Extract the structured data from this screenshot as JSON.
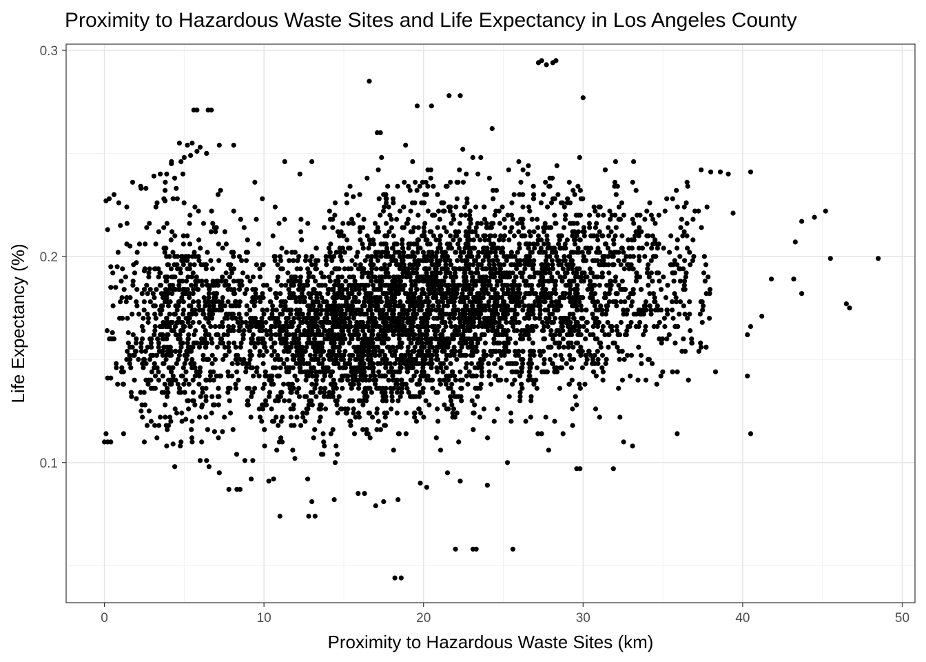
{
  "chart_data": {
    "type": "scatter",
    "title": "Proximity to Hazardous Waste Sites and Life Expectancy in Los Angeles County",
    "xlabel": "Proximity to Hazardous Waste Sites (km)",
    "ylabel": "Life Expectancy (%)",
    "xlim": [
      -2.4,
      50.8
    ],
    "ylim": [
      0.032,
      0.303
    ],
    "x_ticks": [
      0,
      10,
      20,
      30,
      40,
      50
    ],
    "x_tick_labels": [
      "0",
      "10",
      "20",
      "30",
      "40",
      "50"
    ],
    "y_ticks": [
      0.1,
      0.2,
      0.3
    ],
    "y_tick_labels": [
      "0.1",
      "0.2",
      "0.3"
    ],
    "grid": true,
    "legend": "none",
    "point_color": "#000000",
    "points": [
      [
        16.6,
        0.285
      ],
      [
        27.2,
        0.294
      ],
      [
        27.4,
        0.295
      ],
      [
        27.7,
        0.293
      ],
      [
        28.1,
        0.294
      ],
      [
        28.3,
        0.295
      ],
      [
        30.0,
        0.277
      ],
      [
        21.6,
        0.278
      ],
      [
        22.3,
        0.278
      ],
      [
        19.6,
        0.273
      ],
      [
        20.5,
        0.273
      ],
      [
        5.6,
        0.271
      ],
      [
        5.8,
        0.271
      ],
      [
        6.5,
        0.271
      ],
      [
        6.7,
        0.271
      ],
      [
        17.1,
        0.26
      ],
      [
        17.3,
        0.26
      ],
      [
        24.3,
        0.262
      ],
      [
        4.7,
        0.255
      ],
      [
        5.2,
        0.254
      ],
      [
        5.5,
        0.255
      ],
      [
        6.0,
        0.253
      ],
      [
        7.2,
        0.254
      ],
      [
        8.1,
        0.254
      ],
      [
        5.0,
        0.248
      ],
      [
        5.4,
        0.249
      ],
      [
        5.8,
        0.251
      ],
      [
        6.4,
        0.25
      ],
      [
        4.2,
        0.245
      ],
      [
        4.8,
        0.246
      ],
      [
        11.3,
        0.246
      ],
      [
        13.0,
        0.246
      ],
      [
        3.1,
        0.239
      ],
      [
        3.5,
        0.24
      ],
      [
        3.9,
        0.24
      ],
      [
        4.4,
        0.238
      ],
      [
        2.3,
        0.233
      ],
      [
        2.6,
        0.233
      ],
      [
        3.8,
        0.232
      ],
      [
        4.5,
        0.233
      ],
      [
        0.1,
        0.227
      ],
      [
        0.3,
        0.228
      ],
      [
        0.6,
        0.23
      ],
      [
        0.9,
        0.226
      ],
      [
        1.4,
        0.224
      ],
      [
        3.3,
        0.226
      ],
      [
        3.8,
        0.227
      ],
      [
        4.3,
        0.228
      ],
      [
        9.9,
        0.228
      ],
      [
        10.7,
        0.224
      ],
      [
        15.6,
        0.229
      ],
      [
        16.0,
        0.23
      ],
      [
        37.4,
        0.242
      ],
      [
        38.0,
        0.241
      ],
      [
        38.6,
        0.241
      ],
      [
        39.1,
        0.24
      ],
      [
        40.5,
        0.241
      ],
      [
        39.4,
        0.221
      ],
      [
        45.2,
        0.222
      ],
      [
        44.5,
        0.219
      ],
      [
        43.7,
        0.217
      ],
      [
        43.3,
        0.207
      ],
      [
        45.5,
        0.199
      ],
      [
        48.5,
        0.199
      ],
      [
        41.8,
        0.189
      ],
      [
        43.2,
        0.189
      ],
      [
        43.7,
        0.182
      ],
      [
        46.5,
        0.177
      ],
      [
        46.7,
        0.175
      ],
      [
        41.2,
        0.171
      ],
      [
        40.3,
        0.162
      ],
      [
        40.5,
        0.166
      ],
      [
        40.3,
        0.142
      ],
      [
        40.5,
        0.114
      ],
      [
        38.3,
        0.144
      ],
      [
        36.6,
        0.14
      ],
      [
        35.9,
        0.114
      ],
      [
        33.1,
        0.108
      ],
      [
        31.9,
        0.097
      ],
      [
        29.6,
        0.097
      ],
      [
        29.8,
        0.097
      ],
      [
        28.1,
        0.148
      ],
      [
        24.0,
        0.089
      ],
      [
        22.3,
        0.091
      ],
      [
        22.0,
        0.058
      ],
      [
        23.1,
        0.058
      ],
      [
        23.3,
        0.058
      ],
      [
        25.6,
        0.058
      ],
      [
        18.2,
        0.044
      ],
      [
        18.6,
        0.044
      ],
      [
        11.0,
        0.074
      ],
      [
        12.8,
        0.074
      ],
      [
        13.2,
        0.074
      ],
      [
        13.0,
        0.081
      ],
      [
        14.4,
        0.082
      ],
      [
        15.9,
        0.085
      ],
      [
        16.3,
        0.085
      ],
      [
        17.0,
        0.079
      ],
      [
        17.5,
        0.081
      ],
      [
        18.4,
        0.082
      ],
      [
        19.8,
        0.09
      ],
      [
        21.5,
        0.095
      ],
      [
        7.8,
        0.087
      ],
      [
        8.3,
        0.087
      ],
      [
        8.5,
        0.087
      ],
      [
        9.2,
        0.092
      ],
      [
        10.3,
        0.091
      ],
      [
        10.6,
        0.092
      ],
      [
        7.2,
        0.095
      ],
      [
        8.8,
        0.101
      ],
      [
        9.3,
        0.101
      ],
      [
        6.0,
        0.101
      ],
      [
        6.4,
        0.101
      ],
      [
        5.5,
        0.11
      ],
      [
        0.0,
        0.11
      ],
      [
        0.2,
        0.11
      ],
      [
        0.4,
        0.11
      ],
      [
        0.1,
        0.114
      ],
      [
        1.2,
        0.114
      ],
      [
        2.5,
        0.11
      ],
      [
        3.9,
        0.108
      ],
      [
        4.3,
        0.109
      ],
      [
        4.8,
        0.11
      ],
      [
        0.2,
        0.141
      ],
      [
        0.4,
        0.141
      ],
      [
        0.5,
        0.163
      ],
      [
        0.6,
        0.16
      ],
      [
        0.4,
        0.195
      ],
      [
        0.8,
        0.195
      ],
      [
        1.1,
        0.18
      ],
      [
        1.4,
        0.18
      ],
      [
        0.4,
        0.185
      ],
      [
        0.7,
        0.185
      ],
      [
        0.2,
        0.213
      ],
      [
        1.0,
        0.215
      ],
      [
        1.6,
        0.205
      ],
      [
        2.2,
        0.206
      ],
      [
        2.0,
        0.197
      ],
      [
        2.5,
        0.193
      ],
      [
        1.5,
        0.163
      ],
      [
        1.8,
        0.162
      ],
      [
        1.7,
        0.132
      ],
      [
        2.0,
        0.131
      ],
      [
        2.3,
        0.125
      ],
      [
        2.8,
        0.125
      ],
      [
        3.5,
        0.122
      ],
      [
        4.1,
        0.122
      ],
      [
        6.9,
        0.115
      ],
      [
        7.4,
        0.115
      ],
      [
        6.1,
        0.127
      ],
      [
        5.1,
        0.121
      ]
    ]
  }
}
